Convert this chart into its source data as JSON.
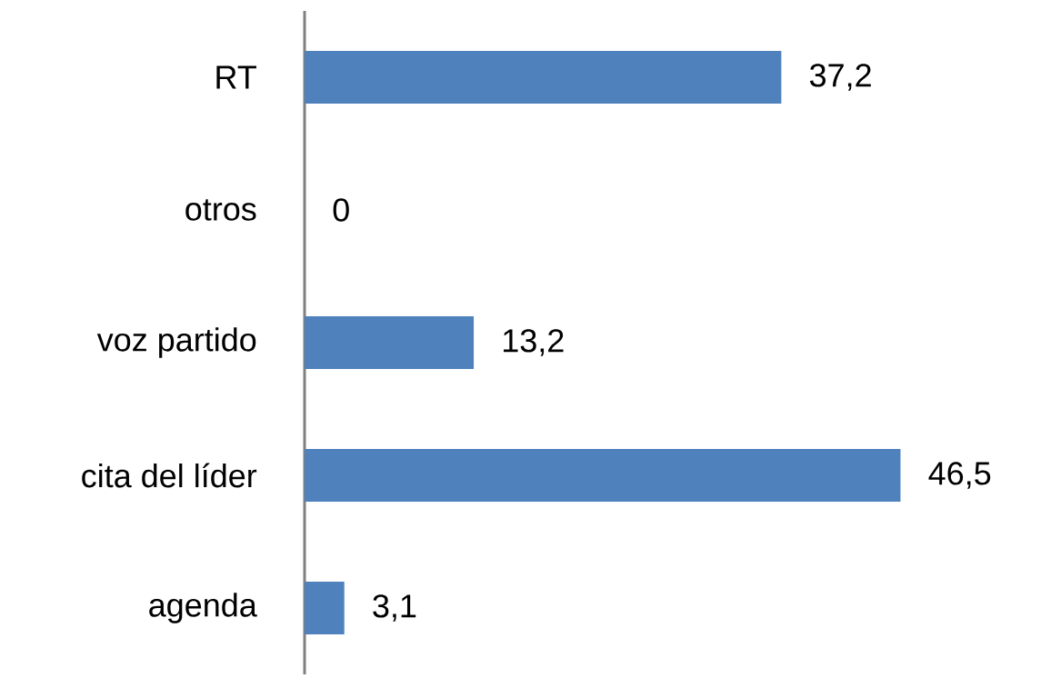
{
  "chart_data": {
    "type": "bar",
    "orientation": "horizontal",
    "categories": [
      "RT",
      "otros",
      "voz partido",
      "cita del líder",
      "agenda"
    ],
    "values": [
      37.2,
      0,
      13.2,
      46.5,
      3.1
    ],
    "value_labels": [
      "37,2",
      "0",
      "13,2",
      "46,5",
      "3,1"
    ],
    "color": "#4f81bd"
  }
}
